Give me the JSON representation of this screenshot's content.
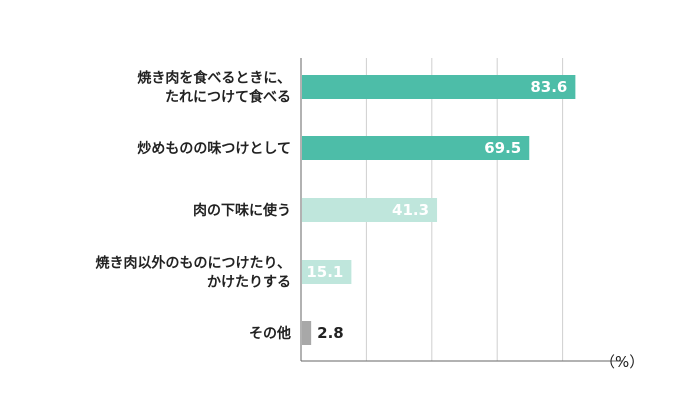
{
  "chart_data": {
    "type": "bar",
    "orientation": "horizontal",
    "categories": [
      [
        "焼き肉を食べるときに、",
        "たれにつけて食べる"
      ],
      [
        "炒めものの味つけとして"
      ],
      [
        "肉の下味に使う"
      ],
      [
        "焼き肉以外のものにつけたり、",
        "かけたりする"
      ],
      [
        "その他"
      ]
    ],
    "values": [
      83.6,
      69.5,
      41.3,
      15.1,
      2.8
    ],
    "value_labels": [
      "83.6",
      "69.5",
      "41.3",
      "15.1",
      "2.8"
    ],
    "bar_colors": [
      "#4dbda8",
      "#4dbda8",
      "#bfe6dc",
      "#bfe6dc",
      "#a8a8a8"
    ],
    "unit": "（%）",
    "xlim": [
      0,
      100
    ],
    "gridlines": [
      20,
      40,
      60,
      80
    ],
    "grid": true,
    "title": "",
    "xlabel": "",
    "ylabel": ""
  }
}
